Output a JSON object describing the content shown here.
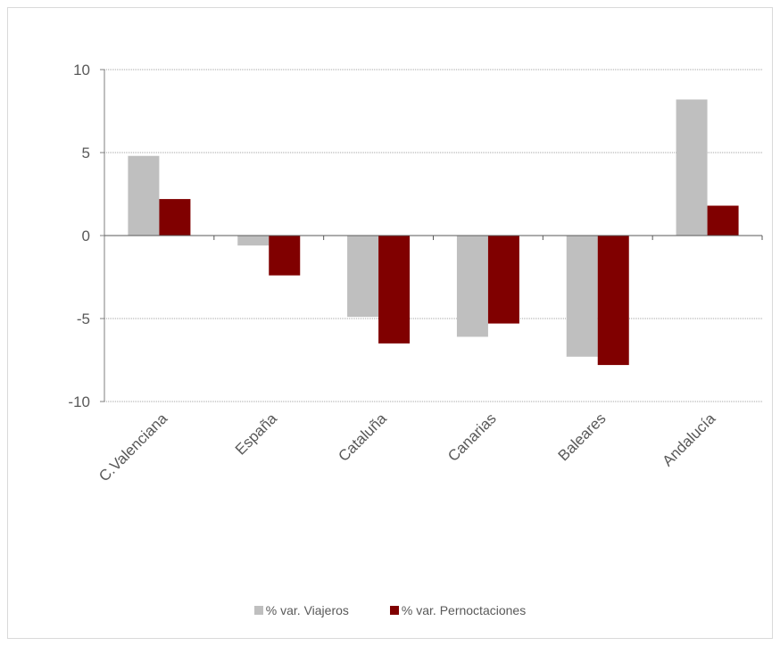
{
  "chart_data": {
    "type": "bar",
    "categories": [
      "C.Valenciana",
      "España",
      "Cataluña",
      "Canarias",
      "Baleares",
      "Andalucía"
    ],
    "series": [
      {
        "name": "% var. Viajeros",
        "color": "#bfbfbf",
        "values": [
          4.8,
          -0.6,
          -4.9,
          -6.1,
          -7.3,
          8.2
        ]
      },
      {
        "name": "% var. Pernoctaciones",
        "color": "#800000",
        "values": [
          2.2,
          -2.4,
          -6.5,
          -5.3,
          -7.8,
          1.8
        ]
      }
    ],
    "ylim": [
      -10,
      10
    ],
    "yticks": [
      10,
      5,
      0,
      -5,
      -10
    ],
    "grid": true,
    "legend_position": "bottom"
  }
}
